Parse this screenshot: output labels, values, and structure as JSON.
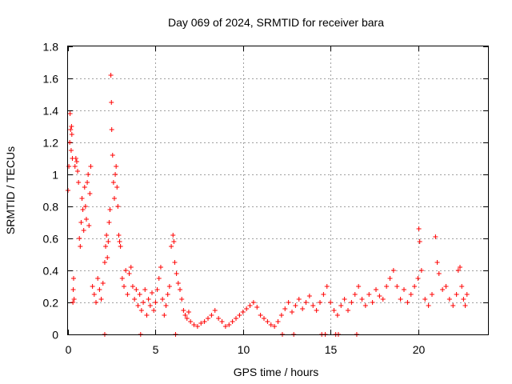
{
  "chart_data": {
    "type": "scatter",
    "title": "Day 069 of 2024, SRMTID for receiver bara",
    "xlabel": "GPS time / hours",
    "ylabel": "SRMTID / TECUs",
    "xlim": [
      0,
      24
    ],
    "ylim": [
      0,
      1.8
    ],
    "x_ticks": [
      0,
      5,
      10,
      15,
      20
    ],
    "x_tick_labels": [
      "0",
      "5",
      "10",
      "15",
      "20"
    ],
    "y_ticks": [
      0,
      0.2,
      0.4,
      0.6,
      0.8,
      1,
      1.2,
      1.4,
      1.6,
      1.8
    ],
    "y_tick_labels": [
      "0",
      "0.2",
      "0.4",
      "0.6",
      "0.8",
      "1",
      "1.2",
      "1.4",
      "1.6",
      "1.8"
    ],
    "grid": true,
    "marker": "plus",
    "color": "#ff0000",
    "series": [
      {
        "name": "SRMTID",
        "points": [
          [
            0.0,
            0.9
          ],
          [
            0.05,
            1.05
          ],
          [
            0.1,
            1.2
          ],
          [
            0.12,
            1.38
          ],
          [
            0.15,
            1.28
          ],
          [
            0.18,
            1.15
          ],
          [
            0.2,
            1.3
          ],
          [
            0.22,
            1.25
          ],
          [
            0.25,
            1.1
          ],
          [
            0.28,
            0.2
          ],
          [
            0.3,
            0.28
          ],
          [
            0.32,
            0.35
          ],
          [
            0.35,
            0.22
          ],
          [
            0.4,
            1.05
          ],
          [
            0.45,
            1.1
          ],
          [
            0.5,
            1.08
          ],
          [
            0.55,
            1.02
          ],
          [
            0.6,
            0.95
          ],
          [
            0.65,
            0.6
          ],
          [
            0.7,
            0.55
          ],
          [
            0.75,
            0.7
          ],
          [
            0.8,
            0.85
          ],
          [
            0.85,
            0.78
          ],
          [
            0.9,
            0.65
          ],
          [
            0.95,
            0.92
          ],
          [
            1.0,
            0.8
          ],
          [
            1.05,
            0.72
          ],
          [
            1.1,
            0.95
          ],
          [
            1.15,
            1.0
          ],
          [
            1.2,
            0.68
          ],
          [
            1.25,
            0.88
          ],
          [
            1.3,
            1.05
          ],
          [
            1.4,
            0.3
          ],
          [
            1.5,
            0.25
          ],
          [
            1.6,
            0.2
          ],
          [
            1.7,
            0.35
          ],
          [
            1.8,
            0.28
          ],
          [
            1.9,
            0.22
          ],
          [
            2.0,
            0.32
          ],
          [
            2.1,
            0.45
          ],
          [
            2.15,
            0.55
          ],
          [
            2.2,
            0.62
          ],
          [
            2.25,
            0.48
          ],
          [
            2.3,
            0.58
          ],
          [
            2.35,
            0.7
          ],
          [
            2.4,
            0.78
          ],
          [
            2.45,
            1.62
          ],
          [
            2.48,
            1.45
          ],
          [
            2.5,
            1.28
          ],
          [
            2.55,
            1.12
          ],
          [
            2.6,
            0.95
          ],
          [
            2.65,
            0.85
          ],
          [
            2.7,
            1.0
          ],
          [
            2.75,
            1.05
          ],
          [
            2.8,
            0.92
          ],
          [
            2.85,
            0.8
          ],
          [
            2.9,
            0.62
          ],
          [
            2.95,
            0.58
          ],
          [
            3.0,
            0.55
          ],
          [
            3.1,
            0.35
          ],
          [
            3.2,
            0.3
          ],
          [
            3.3,
            0.4
          ],
          [
            3.4,
            0.25
          ],
          [
            3.5,
            0.38
          ],
          [
            3.6,
            0.42
          ],
          [
            3.7,
            0.3
          ],
          [
            3.8,
            0.22
          ],
          [
            3.9,
            0.28
          ],
          [
            4.0,
            0.18
          ],
          [
            4.1,
            0.25
          ],
          [
            4.2,
            0.15
          ],
          [
            4.3,
            0.2
          ],
          [
            4.4,
            0.28
          ],
          [
            4.5,
            0.12
          ],
          [
            4.6,
            0.22
          ],
          [
            4.7,
            0.18
          ],
          [
            4.8,
            0.26
          ],
          [
            4.9,
            0.15
          ],
          [
            5.0,
            0.2
          ],
          [
            5.1,
            0.28
          ],
          [
            5.2,
            0.35
          ],
          [
            5.3,
            0.42
          ],
          [
            5.4,
            0.22
          ],
          [
            5.5,
            0.12
          ],
          [
            5.6,
            0.18
          ],
          [
            5.7,
            0.25
          ],
          [
            5.8,
            0.3
          ],
          [
            5.9,
            0.55
          ],
          [
            6.0,
            0.62
          ],
          [
            6.05,
            0.58
          ],
          [
            6.1,
            0.45
          ],
          [
            6.2,
            0.38
          ],
          [
            6.3,
            0.32
          ],
          [
            6.4,
            0.28
          ],
          [
            6.5,
            0.22
          ],
          [
            6.6,
            0.15
          ],
          [
            6.7,
            0.12
          ],
          [
            6.8,
            0.1
          ],
          [
            6.9,
            0.14
          ],
          [
            7.0,
            0.08
          ],
          [
            7.2,
            0.06
          ],
          [
            7.4,
            0.05
          ],
          [
            7.6,
            0.07
          ],
          [
            7.8,
            0.08
          ],
          [
            8.0,
            0.1
          ],
          [
            8.2,
            0.12
          ],
          [
            8.4,
            0.15
          ],
          [
            8.6,
            0.1
          ],
          [
            8.8,
            0.08
          ],
          [
            9.0,
            0.05
          ],
          [
            9.2,
            0.06
          ],
          [
            9.4,
            0.08
          ],
          [
            9.6,
            0.1
          ],
          [
            9.8,
            0.12
          ],
          [
            10.0,
            0.14
          ],
          [
            10.2,
            0.16
          ],
          [
            10.4,
            0.18
          ],
          [
            10.6,
            0.2
          ],
          [
            10.8,
            0.17
          ],
          [
            11.0,
            0.12
          ],
          [
            11.2,
            0.1
          ],
          [
            11.4,
            0.08
          ],
          [
            11.6,
            0.06
          ],
          [
            11.8,
            0.05
          ],
          [
            12.0,
            0.08
          ],
          [
            12.2,
            0.12
          ],
          [
            12.4,
            0.16
          ],
          [
            12.6,
            0.2
          ],
          [
            12.8,
            0.14
          ],
          [
            13.0,
            0.18
          ],
          [
            13.2,
            0.22
          ],
          [
            13.4,
            0.16
          ],
          [
            13.6,
            0.2
          ],
          [
            13.8,
            0.24
          ],
          [
            14.0,
            0.18
          ],
          [
            14.2,
            0.15
          ],
          [
            14.4,
            0.2
          ],
          [
            14.6,
            0.25
          ],
          [
            14.8,
            0.3
          ],
          [
            15.0,
            0.2
          ],
          [
            15.2,
            0.15
          ],
          [
            15.4,
            0.12
          ],
          [
            15.6,
            0.18
          ],
          [
            15.8,
            0.22
          ],
          [
            16.0,
            0.15
          ],
          [
            16.2,
            0.2
          ],
          [
            16.4,
            0.25
          ],
          [
            16.6,
            0.3
          ],
          [
            16.8,
            0.22
          ],
          [
            17.0,
            0.18
          ],
          [
            17.2,
            0.25
          ],
          [
            17.4,
            0.2
          ],
          [
            17.6,
            0.28
          ],
          [
            17.8,
            0.24
          ],
          [
            18.0,
            0.22
          ],
          [
            18.2,
            0.3
          ],
          [
            18.4,
            0.35
          ],
          [
            18.6,
            0.4
          ],
          [
            18.8,
            0.3
          ],
          [
            19.0,
            0.22
          ],
          [
            19.2,
            0.28
          ],
          [
            19.4,
            0.2
          ],
          [
            19.6,
            0.25
          ],
          [
            19.8,
            0.3
          ],
          [
            20.0,
            0.35
          ],
          [
            20.05,
            0.66
          ],
          [
            20.1,
            0.58
          ],
          [
            20.2,
            0.4
          ],
          [
            20.4,
            0.22
          ],
          [
            20.6,
            0.18
          ],
          [
            20.8,
            0.25
          ],
          [
            21.0,
            0.61
          ],
          [
            21.1,
            0.45
          ],
          [
            21.2,
            0.38
          ],
          [
            21.4,
            0.28
          ],
          [
            21.6,
            0.3
          ],
          [
            21.8,
            0.22
          ],
          [
            22.0,
            0.18
          ],
          [
            22.2,
            0.25
          ],
          [
            22.3,
            0.4
          ],
          [
            22.4,
            0.42
          ],
          [
            22.5,
            0.3
          ],
          [
            22.6,
            0.22
          ],
          [
            22.7,
            0.18
          ],
          [
            22.8,
            0.25
          ],
          [
            2.1,
            0.0
          ],
          [
            4.15,
            0.0
          ],
          [
            6.15,
            0.0
          ],
          [
            12.25,
            0.0
          ],
          [
            12.9,
            0.0
          ],
          [
            14.5,
            0.0
          ],
          [
            14.7,
            0.0
          ],
          [
            15.3,
            0.0
          ],
          [
            15.45,
            0.0
          ],
          [
            16.5,
            0.0
          ]
        ]
      }
    ]
  }
}
